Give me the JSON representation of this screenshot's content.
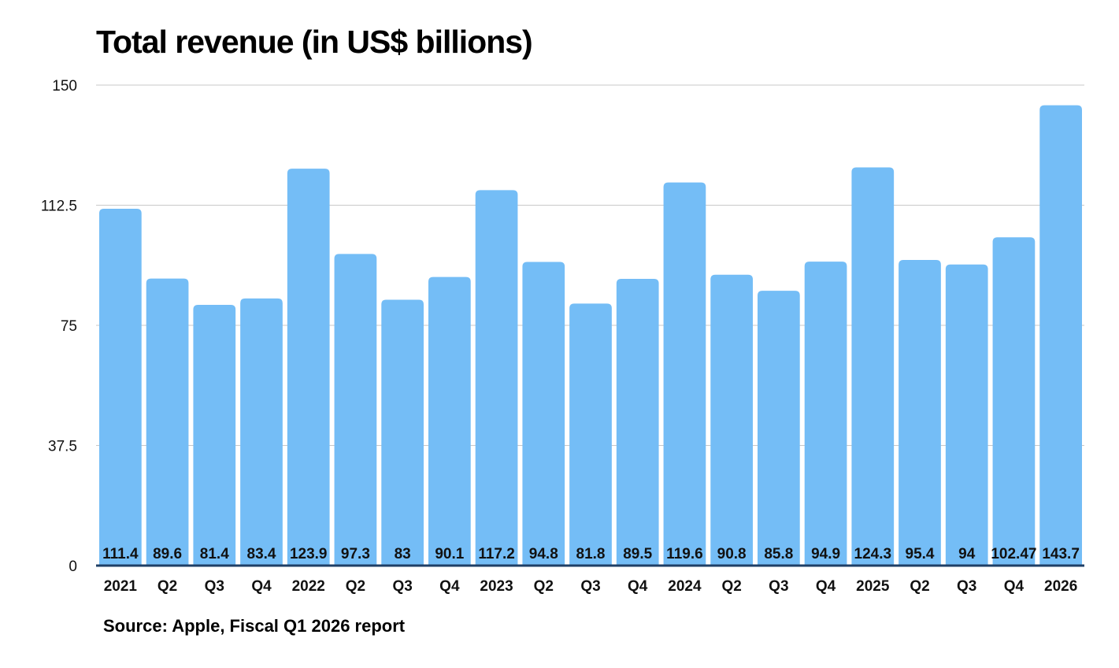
{
  "chart_data": {
    "type": "bar",
    "title": "Total revenue (in US$ billions)",
    "source": "Source: Apple, Fiscal Q1 2026 report",
    "xlabel": "",
    "ylabel": "",
    "ylim": [
      0,
      150
    ],
    "yticks": [
      "0",
      "37.5",
      "75",
      "112.5",
      "150"
    ],
    "grid": true,
    "bar_color": "#74bdf6",
    "axis_color": "#1f3f66",
    "categories": [
      "2021",
      "Q2",
      "Q3",
      "Q4",
      "2022",
      "Q2",
      "Q3",
      "Q4",
      "2023",
      "Q2",
      "Q3",
      "Q4",
      "2024",
      "Q2",
      "Q3",
      "Q4",
      "2025",
      "Q2",
      "Q3",
      "Q4",
      "2026"
    ],
    "values": [
      111.4,
      89.6,
      81.4,
      83.4,
      123.9,
      97.3,
      83,
      90.1,
      117.2,
      94.8,
      81.8,
      89.5,
      119.6,
      90.8,
      85.8,
      94.9,
      124.3,
      95.4,
      94,
      102.47,
      143.7
    ]
  }
}
